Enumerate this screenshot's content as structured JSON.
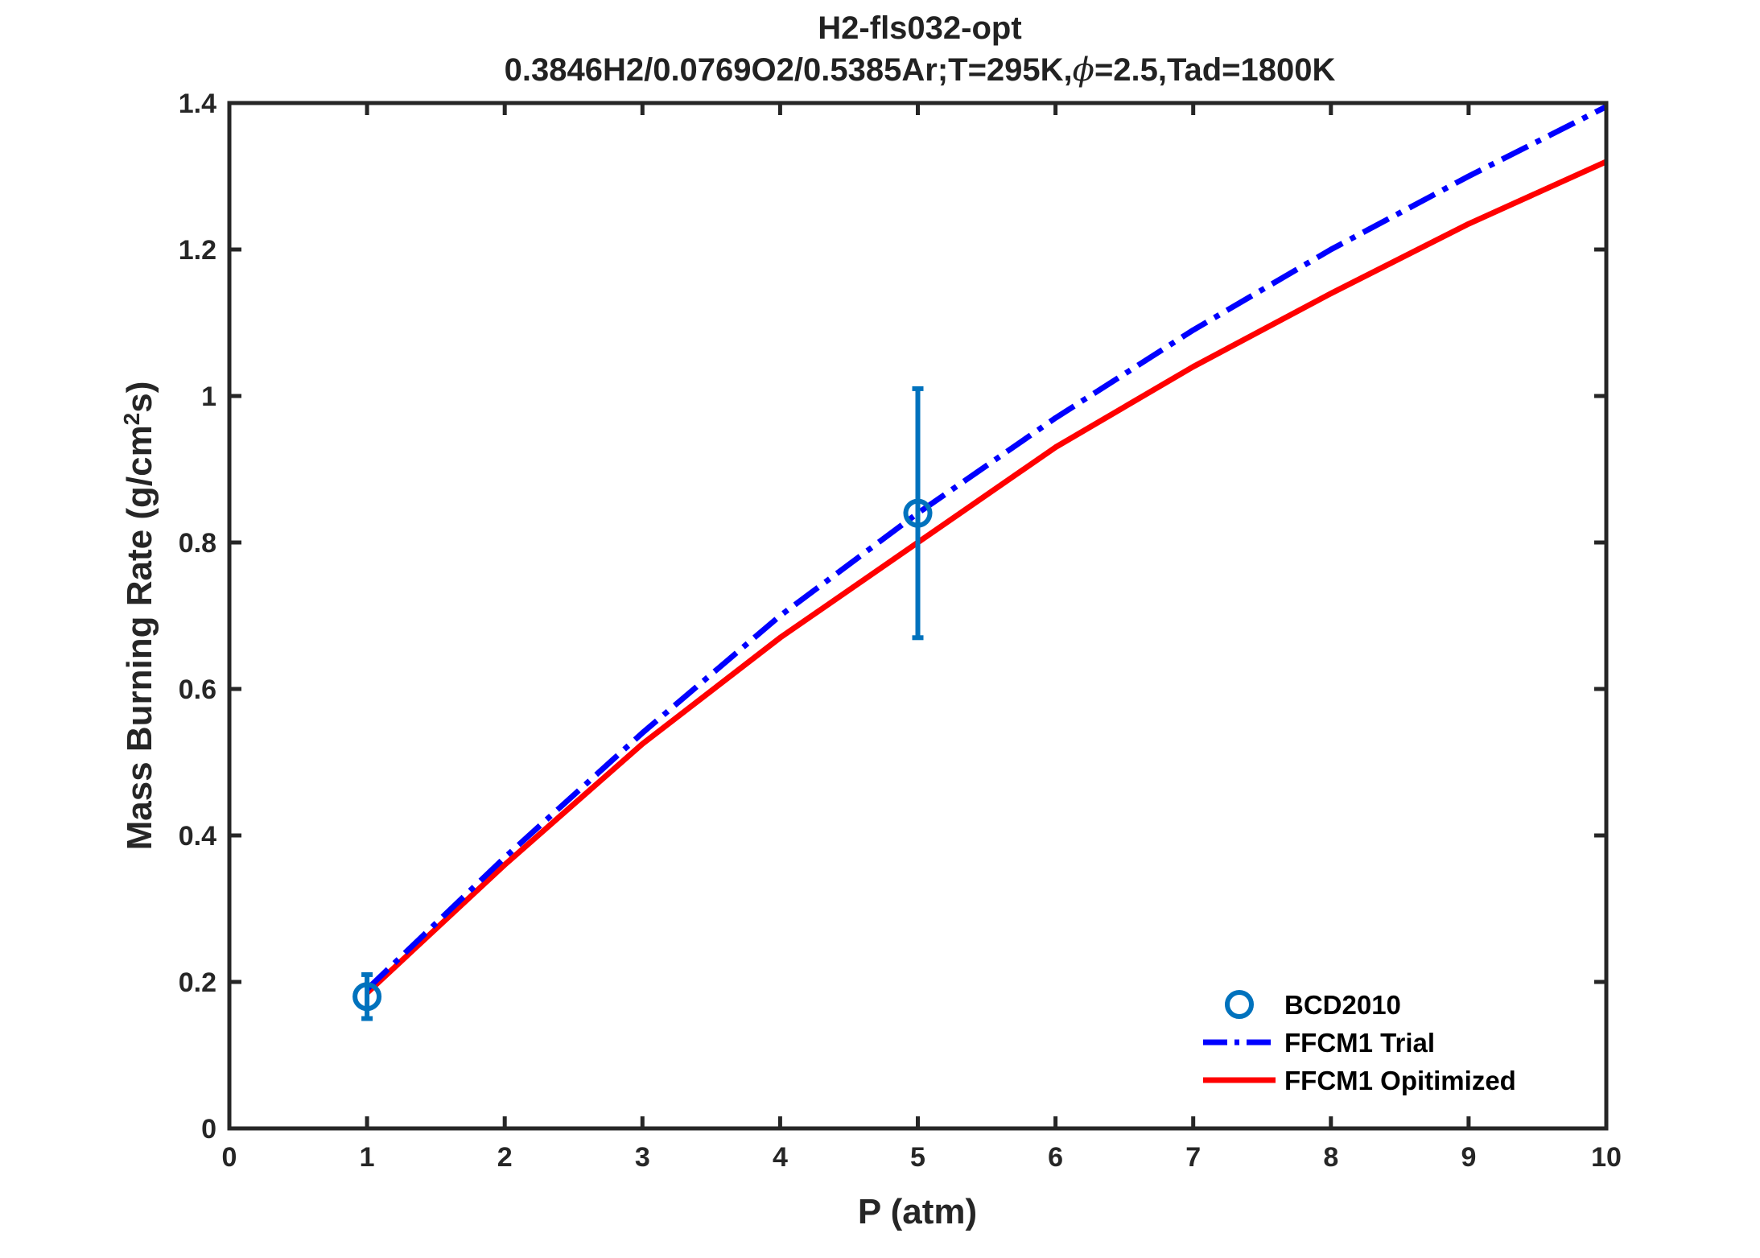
{
  "chart_data": {
    "type": "line",
    "title": "H2-fls032-opt",
    "subtitle_parts": [
      "0.3846H2/0.0769O2/0.5385Ar;T=295K,",
      "ϕ",
      "=2.5,Tad=1800K"
    ],
    "xlabel": "P (atm)",
    "ylabel_parts": [
      "Mass Burning Rate (g/cm",
      "2",
      "s)"
    ],
    "xlim": [
      0,
      10
    ],
    "ylim": [
      0,
      1.4
    ],
    "x_ticks": [
      0,
      1,
      2,
      3,
      4,
      5,
      6,
      7,
      8,
      9,
      10
    ],
    "x_tick_labels": [
      "0",
      "1",
      "2",
      "3",
      "4",
      "5",
      "6",
      "7",
      "8",
      "9",
      "10"
    ],
    "y_ticks": [
      0,
      0.2,
      0.4,
      0.6,
      0.8,
      1.0,
      1.2,
      1.4
    ],
    "y_tick_labels": [
      "0",
      "0.2",
      "0.4",
      "0.6",
      "0.8",
      "1",
      "1.2",
      "1.4"
    ],
    "grid": false,
    "legend_position": "bottom-right",
    "series": [
      {
        "name": "BCD2010",
        "kind": "errorbar",
        "color": "#0072BD",
        "x": [
          1,
          5
        ],
        "y": [
          0.18,
          0.84
        ],
        "err_low": [
          0.15,
          0.67
        ],
        "err_high": [
          0.21,
          1.01
        ]
      },
      {
        "name": "FFCM1 Trial",
        "kind": "dashdot",
        "color": "#0000FF",
        "x": [
          1,
          2,
          3,
          4,
          5,
          6,
          7,
          8,
          9,
          10
        ],
        "y": [
          0.19,
          0.37,
          0.54,
          0.7,
          0.84,
          0.97,
          1.09,
          1.2,
          1.3,
          1.395
        ]
      },
      {
        "name": "FFCM1 Opitimized",
        "kind": "solid",
        "color": "#FF0000",
        "x": [
          1,
          2,
          3,
          4,
          5,
          6,
          7,
          8,
          9,
          10
        ],
        "y": [
          0.185,
          0.36,
          0.525,
          0.67,
          0.8,
          0.93,
          1.04,
          1.14,
          1.235,
          1.32
        ]
      }
    ]
  }
}
